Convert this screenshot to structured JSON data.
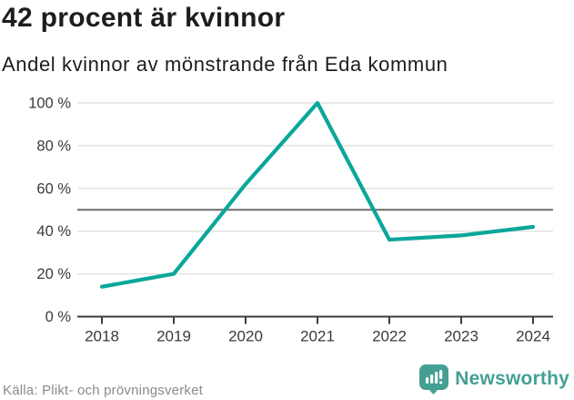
{
  "header": {
    "title": "42 procent är kvinnor",
    "subtitle": "Andel kvinnor av mönstrande från Eda kommun"
  },
  "chart_data": {
    "type": "line",
    "title": "42 procent är kvinnor",
    "subtitle": "Andel kvinnor av mönstrande från Eda kommun",
    "x": [
      "2018",
      "2019",
      "2020",
      "2021",
      "2022",
      "2023",
      "2024"
    ],
    "series": [
      {
        "name": "Andel kvinnor av mönstrande",
        "values": [
          14,
          20,
          62,
          100,
          36,
          38,
          42
        ]
      }
    ],
    "unit": "%",
    "ylim": [
      0,
      100
    ],
    "y_ticks": [
      0,
      20,
      40,
      60,
      80,
      100
    ],
    "y_tick_suffix": " %",
    "reference_line_y": 50,
    "grid": true,
    "legend_position": "none",
    "colors": {
      "line": "#0aa79b",
      "grid": "#e3e3e3",
      "reference": "#6b6b6b",
      "axis": "#3c3c3c",
      "tick_label": "#3a3a3a"
    }
  },
  "footer": {
    "source": "Källa: Plikt- och prövningsverket",
    "brand": "Newsworthy",
    "brand_color": "#45a093",
    "logo_icon": "newsworthy-barchart-pin"
  }
}
